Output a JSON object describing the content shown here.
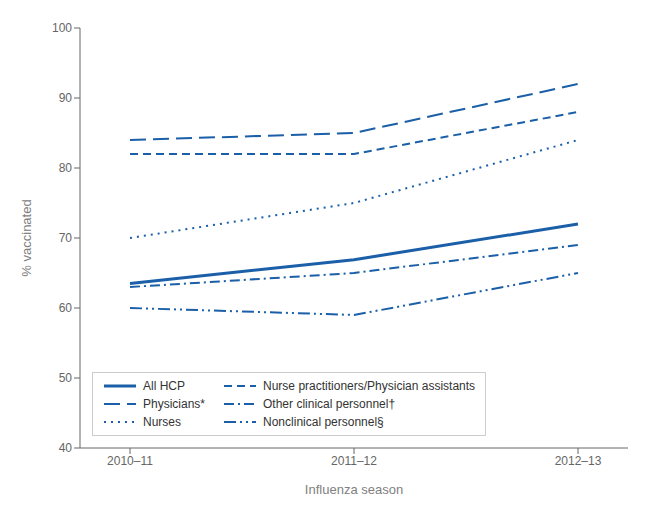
{
  "chart_data": {
    "type": "line",
    "categories": [
      "2010–11",
      "2011–12",
      "2012–13"
    ],
    "series": [
      {
        "name": "All HCP",
        "values": [
          63.5,
          66.9,
          72.0
        ],
        "line_style": "solid"
      },
      {
        "name": "Physicians*",
        "values": [
          84.0,
          85.0,
          92.0
        ],
        "line_style": "longdash"
      },
      {
        "name": "Nurses",
        "values": [
          70.0,
          75.0,
          84.0
        ],
        "line_style": "dotted"
      },
      {
        "name": "Nurse practitioners/Physician assistants",
        "values": [
          82.0,
          82.0,
          88.0
        ],
        "line_style": "dashed"
      },
      {
        "name": "Other clinical personnel†",
        "values": [
          63.0,
          65.0,
          69.0
        ],
        "line_style": "dashdot"
      },
      {
        "name": "Nonclinical personnel§",
        "values": [
          60.0,
          59.0,
          65.0
        ],
        "line_style": "dashdotdot"
      }
    ],
    "color": "#1a5fa8",
    "ylim": [
      40,
      100
    ],
    "yticks": [
      40,
      50,
      60,
      70,
      80,
      90,
      100
    ],
    "xlabel": "Influenza season",
    "ylabel": "% vaccinated",
    "grid": false,
    "legend": "lower left"
  }
}
